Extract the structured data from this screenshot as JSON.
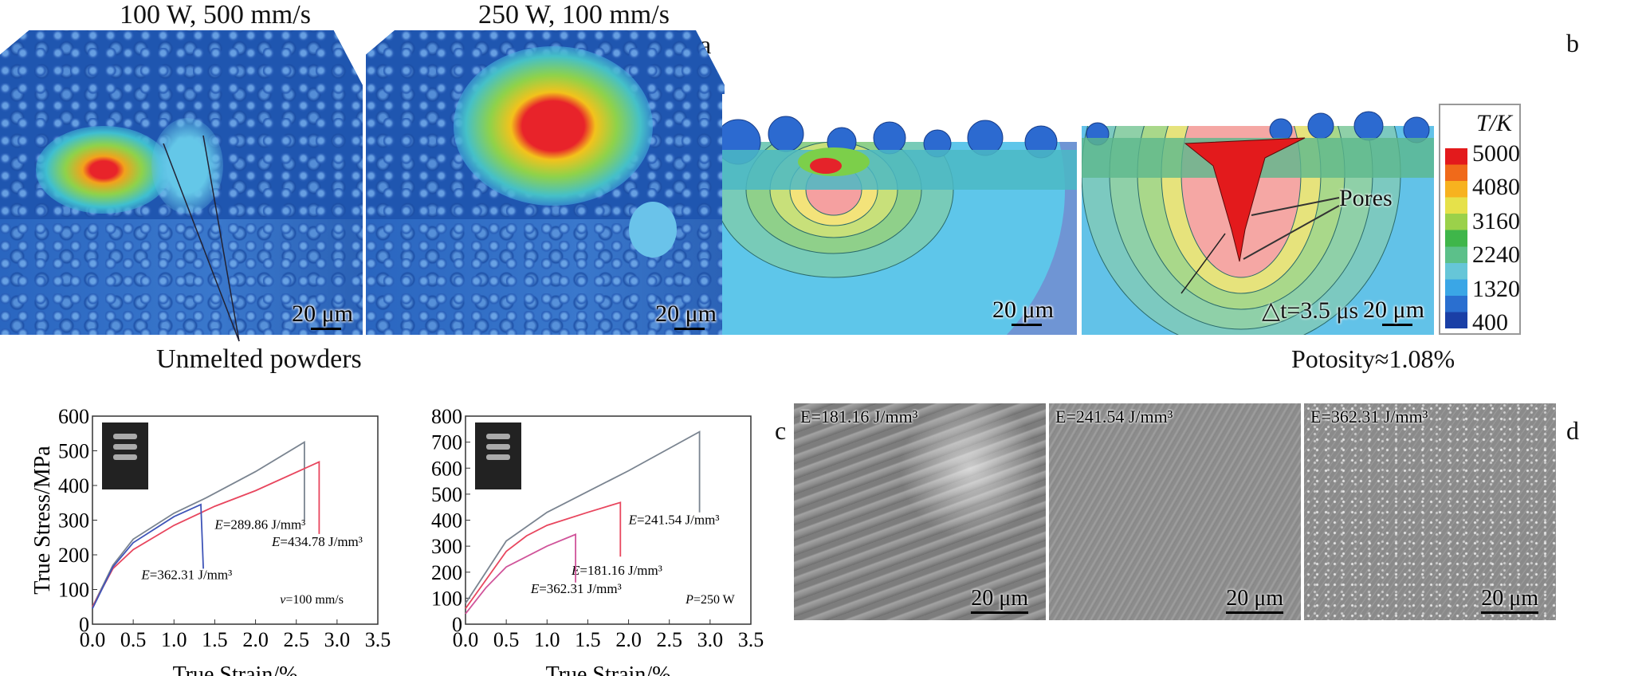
{
  "panel_a": {
    "letter": "a",
    "left_title": "100 W, 500 mm/s",
    "right_title": "250 W, 100 mm/s",
    "scale_bar": "20 μm",
    "annotation": "Unmelted powders"
  },
  "panel_b": {
    "letter": "b",
    "scale_bar": "20 μm",
    "pores_label": "Pores",
    "time_label": "△t=3.5 μs",
    "porosity": "Potosity≈1.08%",
    "colorbar": {
      "title": "T/K",
      "ticks": [
        "5000",
        "4080",
        "3160",
        "2240",
        "1320",
        "400"
      ],
      "colors": [
        "#e31a1c",
        "#f06a1a",
        "#f7b21f",
        "#e6e14a",
        "#9bd14a",
        "#3fb64a",
        "#5cc08a",
        "#66c6d8",
        "#3aa6e6",
        "#2a6fd0",
        "#1a3fa6"
      ]
    }
  },
  "panel_c_letter": "c",
  "panel_d": {
    "letter": "d",
    "scale_bar": "20 μm",
    "images": [
      {
        "label": "E=181.16 J/mm³"
      },
      {
        "label": "E=241.54 J/mm³"
      },
      {
        "label": "E=362.31 J/mm³"
      }
    ]
  },
  "chart_data": [
    {
      "type": "line",
      "xlabel": "True Strain/%",
      "ylabel": "True Stress/MPa",
      "xlim": [
        0,
        3.5
      ],
      "ylim": [
        0,
        600
      ],
      "xticks": [
        "0.0",
        "0.5",
        "1.0",
        "1.5",
        "2.0",
        "2.5",
        "3.0",
        "3.5"
      ],
      "yticks": [
        "0",
        "100",
        "200",
        "300",
        "400",
        "500",
        "600"
      ],
      "condition": "v=100 mm/s",
      "series": [
        {
          "name": "E=289.86 J/mm³",
          "color": "#7a8490",
          "x": [
            0,
            0.25,
            0.5,
            1.0,
            1.4,
            2.0,
            2.6,
            2.6
          ],
          "y": [
            50,
            170,
            245,
            320,
            365,
            440,
            525,
            300
          ]
        },
        {
          "name": "E=434.78 J/mm³",
          "color": "#e8465e",
          "x": [
            0,
            0.25,
            0.5,
            1.0,
            1.5,
            2.0,
            2.78,
            2.78
          ],
          "y": [
            50,
            160,
            215,
            285,
            340,
            385,
            468,
            260
          ]
        },
        {
          "name": "E=362.31 J/mm³",
          "color": "#3f55b8",
          "x": [
            0,
            0.25,
            0.5,
            1.0,
            1.33,
            1.36
          ],
          "y": [
            45,
            165,
            235,
            310,
            345,
            160
          ]
        }
      ]
    },
    {
      "type": "line",
      "xlabel": "True Strain/%",
      "ylabel": "",
      "xlim": [
        0,
        3.5
      ],
      "ylim": [
        0,
        800
      ],
      "xticks": [
        "0.0",
        "0.5",
        "1.0",
        "1.5",
        "2.0",
        "2.5",
        "3.0",
        "3.5"
      ],
      "yticks": [
        "0",
        "100",
        "200",
        "300",
        "400",
        "500",
        "600",
        "700",
        "800"
      ],
      "condition": "P=250 W",
      "series": [
        {
          "name": "E=241.54 J/mm³",
          "color": "#7a8490",
          "x": [
            0,
            0.25,
            0.5,
            1.0,
            1.5,
            2.0,
            2.87,
            2.87
          ],
          "y": [
            80,
            200,
            320,
            430,
            510,
            590,
            740,
            430
          ]
        },
        {
          "name": "E=181.16 J/mm³",
          "color": "#e8465e",
          "x": [
            0,
            0.25,
            0.5,
            0.75,
            1.0,
            1.5,
            1.9,
            1.9
          ],
          "y": [
            60,
            170,
            280,
            340,
            380,
            430,
            468,
            260
          ]
        },
        {
          "name": "E=362.31 J/mm³",
          "color": "#d0549a",
          "x": [
            0,
            0.25,
            0.5,
            1.0,
            1.35,
            1.35
          ],
          "y": [
            40,
            140,
            220,
            300,
            345,
            160
          ]
        }
      ]
    }
  ]
}
